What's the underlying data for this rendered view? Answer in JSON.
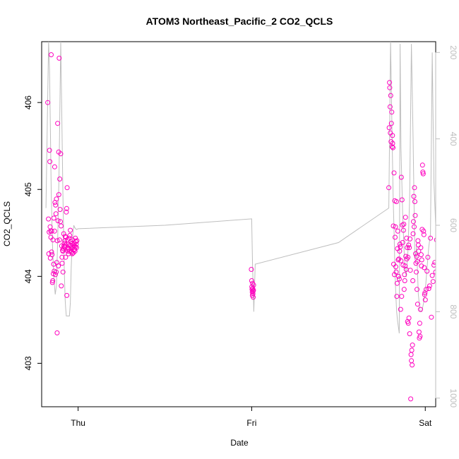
{
  "chart_data": {
    "type": "scatter",
    "title": "ATOM3 Northeast_Pacific_2 CO2_QCLS",
    "xlabel": "Date",
    "ylabel": "CO2_QCLS",
    "x_ticks": [
      "Thu",
      "Fri",
      "Sat"
    ],
    "x_tick_values": [
      0,
      1,
      2
    ],
    "xlim": [
      -0.21,
      2.06
    ],
    "ylim": [
      402.5,
      406.7
    ],
    "y_ticks": [
      403,
      404,
      405,
      406
    ],
    "y2_ticks": [
      200,
      400,
      600,
      800,
      1000
    ],
    "y2lim": [
      1020,
      175
    ],
    "y2_reversed": true,
    "colors": {
      "points": "#ff00bf",
      "line": "#bebebe",
      "axis": "#000000",
      "y2axis": "#bebebe"
    },
    "series": [
      {
        "marker": "open-circle",
        "x": [
          -0.175,
          -0.171,
          -0.169,
          -0.167,
          -0.165,
          -0.163,
          -0.161,
          -0.16,
          -0.158,
          -0.157,
          -0.155,
          -0.153,
          -0.152,
          -0.15,
          -0.148,
          -0.146,
          -0.145,
          -0.143,
          -0.141,
          -0.14,
          -0.138,
          -0.136,
          -0.135,
          -0.133,
          -0.131,
          -0.13,
          -0.128,
          -0.126,
          -0.125,
          -0.123,
          -0.121,
          -0.12,
          -0.118,
          -0.116,
          -0.114,
          -0.112,
          -0.111,
          -0.109,
          -0.107,
          -0.106,
          -0.104,
          -0.102,
          -0.1,
          -0.098,
          -0.097,
          -0.095,
          -0.093,
          -0.092,
          -0.09,
          -0.088,
          -0.087,
          -0.085,
          -0.083,
          -0.082,
          -0.08,
          -0.078,
          -0.077,
          -0.075,
          -0.073,
          -0.072,
          -0.07,
          -0.068,
          -0.066,
          -0.065,
          -0.063,
          -0.061,
          -0.06,
          -0.058,
          -0.056,
          -0.055,
          -0.053,
          -0.052,
          -0.05,
          -0.048,
          -0.047,
          -0.045,
          -0.043,
          -0.042,
          -0.04,
          -0.038,
          -0.036,
          -0.034,
          -0.032,
          -0.03,
          -0.028,
          -0.026,
          -0.025,
          -0.023,
          -0.021,
          -0.02,
          -0.018,
          -0.016,
          -0.015,
          -0.013,
          -0.011,
          -0.009,
          -0.007,
          0.998,
          1.0,
          1.001,
          1.002,
          1.003,
          1.004,
          1.005,
          1.006,
          1.007,
          1.008,
          1.009,
          1.01,
          1.011,
          1.79,
          1.792,
          1.794,
          1.795,
          1.797,
          1.799,
          1.801,
          1.803,
          1.805,
          1.807,
          1.809,
          1.811,
          1.812,
          1.814,
          1.816,
          1.818,
          1.82,
          1.822,
          1.824,
          1.826,
          1.828,
          1.83,
          1.832,
          1.834,
          1.836,
          1.838,
          1.84,
          1.842,
          1.844,
          1.846,
          1.848,
          1.85,
          1.852,
          1.854,
          1.856,
          1.858,
          1.86,
          1.862,
          1.864,
          1.866,
          1.868,
          1.87,
          1.872,
          1.874,
          1.876,
          1.878,
          1.88,
          1.882,
          1.884,
          1.886,
          1.888,
          1.89,
          1.892,
          1.894,
          1.896,
          1.898,
          1.9,
          1.902,
          1.904,
          1.906,
          1.908,
          1.91,
          1.912,
          1.914,
          1.916,
          1.918,
          1.92,
          1.922,
          1.924,
          1.926,
          1.928,
          1.93,
          1.932,
          1.934,
          1.936,
          1.938,
          1.94,
          1.942,
          1.944,
          1.946,
          1.948,
          1.95,
          1.952,
          1.954,
          1.956,
          1.958,
          1.96,
          1.962,
          1.964,
          1.966,
          1.968,
          1.97,
          1.972,
          1.974,
          1.976,
          1.978,
          1.98,
          1.982,
          1.984,
          1.986,
          1.988,
          1.99,
          1.992,
          1.994,
          1.996,
          1.998,
          2.0,
          2.005,
          2.01,
          2.015,
          2.02,
          2.025,
          2.03,
          2.035,
          2.04,
          2.045,
          2.05,
          2.055,
          2.06,
          2.065
        ],
        "y": [
          406.0,
          404.66,
          404.26,
          404.51,
          405.45,
          405.32,
          404.57,
          404.21,
          404.52,
          404.45,
          406.55,
          404.28,
          404.52,
          404.25,
          403.93,
          403.95,
          404.42,
          404.03,
          404.14,
          404.67,
          404.06,
          404.52,
          405.26,
          404.85,
          404.02,
          404.82,
          404.72,
          404.05,
          404.89,
          404.16,
          403.35,
          404.41,
          405.76,
          404.64,
          404.12,
          405.43,
          404.94,
          406.51,
          404.42,
          405.12,
          404.77,
          404.63,
          405.41,
          404.58,
          403.89,
          404.35,
          404.22,
          404.15,
          404.3,
          404.29,
          404.05,
          404.32,
          404.49,
          404.35,
          404.38,
          404.34,
          404.41,
          404.46,
          404.36,
          404.22,
          404.45,
          404.74,
          404.78,
          403.78,
          405.02,
          404.42,
          404.29,
          404.31,
          404.26,
          404.37,
          404.32,
          404.44,
          404.29,
          404.47,
          404.36,
          404.53,
          404.35,
          404.4,
          404.32,
          404.28,
          404.38,
          404.26,
          404.42,
          404.33,
          404.27,
          404.3,
          404.36,
          404.38,
          404.35,
          404.31,
          404.29,
          404.44,
          404.34,
          404.4,
          404.37,
          404.33,
          404.41,
          404.08,
          403.95,
          403.88,
          403.85,
          403.82,
          403.78,
          403.92,
          403.86,
          403.8,
          403.83,
          403.76,
          403.84,
          403.9,
          405.02,
          405.71,
          406.23,
          406.17,
          405.95,
          405.65,
          406.08,
          405.55,
          405.76,
          405.89,
          405.49,
          405.62,
          405.53,
          405.48,
          404.58,
          404.14,
          405.19,
          404.02,
          404.87,
          404.45,
          404.57,
          404.11,
          404.05,
          404.86,
          403.77,
          403.92,
          404.32,
          404.52,
          404.19,
          404.0,
          404.2,
          403.97,
          404.29,
          404.37,
          404.34,
          403.62,
          404.18,
          405.14,
          403.77,
          404.88,
          404.59,
          404.39,
          404.13,
          404.53,
          404.6,
          403.85,
          404.02,
          403.95,
          404.12,
          404.68,
          404.23,
          404.08,
          404.44,
          404.2,
          404.33,
          403.48,
          404.22,
          403.46,
          404.36,
          403.52,
          404.33,
          403.34,
          404.43,
          404.07,
          402.59,
          403.1,
          403.03,
          403.15,
          402.98,
          403.21,
          403.95,
          404.49,
          404.63,
          404.92,
          404.57,
          405.02,
          404.86,
          404.7,
          404.26,
          404.15,
          404.05,
          404.23,
          403.85,
          404.17,
          403.68,
          404.41,
          404.36,
          404.29,
          403.36,
          403.29,
          403.46,
          403.31,
          403.62,
          404.33,
          404.25,
          404.12,
          404.19,
          404.54,
          405.28,
          405.2,
          405.18,
          404.52,
          404.48,
          404.1,
          403.79,
          403.81,
          403.73,
          403.85,
          404.06,
          404.22,
          403.86,
          403.89,
          404.44,
          403.53,
          404.01,
          403.94,
          404.13,
          404.16,
          404.05,
          404.42
        ]
      },
      {
        "marker": "line",
        "axis": "right",
        "x": [
          -0.185,
          -0.17,
          -0.165,
          -0.16,
          -0.155,
          -0.148,
          -0.14,
          -0.132,
          -0.125,
          -0.118,
          -0.11,
          -0.105,
          -0.1,
          -0.095,
          -0.088,
          -0.08,
          -0.075,
          -0.072,
          -0.068,
          -0.064,
          -0.06,
          -0.055,
          -0.05,
          -0.045,
          -0.04,
          -0.035,
          -0.03,
          -0.025,
          -0.02,
          -0.01,
          0.0,
          0.5,
          1.0,
          1.005,
          1.01,
          1.012,
          1.02,
          1.5,
          1.79,
          1.8,
          1.81,
          1.815,
          1.82,
          1.825,
          1.83,
          1.835,
          1.84,
          1.85,
          1.855,
          1.86,
          1.87,
          1.88,
          1.89,
          1.9,
          1.91,
          1.92,
          1.93,
          1.94,
          1.95,
          1.96,
          1.97,
          1.98,
          1.99,
          2.0,
          2.01,
          2.02,
          2.03,
          2.04,
          2.05,
          2.06
        ],
        "y": [
          560,
          175,
          240,
          370,
          520,
          640,
          720,
          760,
          740,
          640,
          480,
          330,
          175,
          320,
          520,
          700,
          770,
          790,
          810,
          810,
          810,
          810,
          810,
          780,
          700,
          650,
          620,
          600,
          605,
          610,
          608,
          600,
          585,
          700,
          760,
          800,
          690,
          640,
          560,
          175,
          420,
          540,
          610,
          700,
          760,
          800,
          820,
          850,
          180,
          420,
          580,
          680,
          720,
          660,
          540,
          180,
          400,
          680,
          650,
          760,
          800,
          800,
          780,
          750,
          700,
          650,
          620,
          200,
          500,
          600
        ]
      }
    ]
  }
}
